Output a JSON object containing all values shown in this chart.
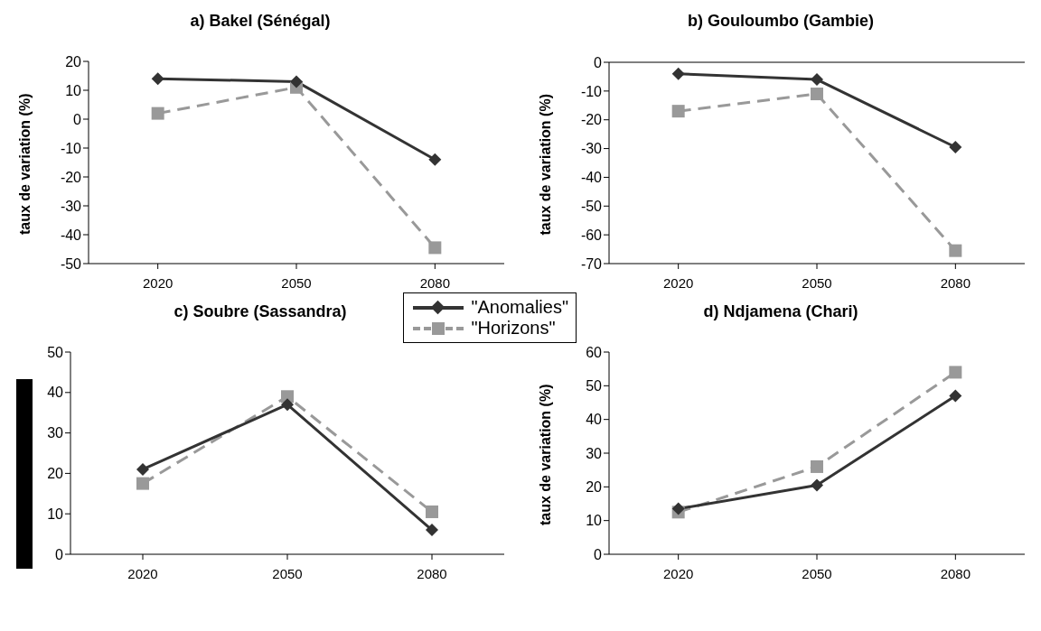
{
  "chart_data": [
    {
      "type": "line",
      "title": "a) Bakel (Sénégal)",
      "ylabel": "taux de variation (%)",
      "categories": [
        "2020",
        "2050",
        "2080"
      ],
      "ylim": [
        -50,
        20
      ],
      "yticks": [
        -50,
        -40,
        -30,
        -20,
        -10,
        0,
        10,
        20
      ],
      "grid": false,
      "legend": false,
      "series": [
        {
          "color": "#333333",
          "marker": "diamond",
          "line_style": "solid",
          "values": [
            14,
            13,
            -14
          ]
        },
        {
          "color": "#999999",
          "marker": "square",
          "line_style": "dashed",
          "values": [
            2,
            11,
            -44.5
          ]
        }
      ]
    },
    {
      "type": "line",
      "title": "b) Gouloumbo (Gambie)",
      "ylabel": "taux de variation (%)",
      "categories": [
        "2020",
        "2050",
        "2080"
      ],
      "ylim": [
        -70,
        0
      ],
      "yticks": [
        -70,
        -60,
        -50,
        -40,
        -30,
        -20,
        -10,
        0
      ],
      "grid": false,
      "legend": false,
      "series": [
        {
          "color": "#333333",
          "marker": "diamond",
          "line_style": "solid",
          "values": [
            -4,
            -6,
            -29.5
          ]
        },
        {
          "color": "#999999",
          "marker": "square",
          "line_style": "dashed",
          "values": [
            -17,
            -11,
            -65.5
          ]
        }
      ]
    },
    {
      "type": "line",
      "title": "c) Soubre (Sassandra)",
      "categories": [
        "2020",
        "2050",
        "2080"
      ],
      "ylim": [
        0,
        50
      ],
      "yticks": [
        0,
        10,
        20,
        30,
        40,
        50
      ],
      "grid": false,
      "legend": "top right",
      "series": [
        {
          "name": "\"Anomalies\"",
          "color": "#333333",
          "marker": "diamond",
          "line_style": "solid",
          "values": [
            21,
            37,
            6
          ]
        },
        {
          "name": "\"Horizons\"",
          "color": "#999999",
          "marker": "square",
          "line_style": "dashed",
          "values": [
            17.5,
            39,
            10.5
          ]
        }
      ]
    },
    {
      "type": "line",
      "title": "d) Ndjamena (Chari)",
      "ylabel": "taux de variation (%)",
      "categories": [
        "2020",
        "2050",
        "2080"
      ],
      "ylim": [
        0,
        60
      ],
      "yticks": [
        0,
        10,
        20,
        30,
        40,
        50,
        60
      ],
      "grid": false,
      "legend": false,
      "series": [
        {
          "color": "#333333",
          "marker": "diamond",
          "line_style": "solid",
          "values": [
            13.5,
            20.5,
            47
          ]
        },
        {
          "color": "#999999",
          "marker": "square",
          "line_style": "dashed",
          "values": [
            12.5,
            26,
            54
          ]
        }
      ]
    }
  ]
}
